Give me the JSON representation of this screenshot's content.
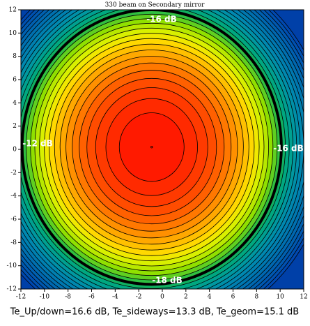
{
  "chart_data": {
    "type": "contour",
    "title": "330 beam on Secondary mirror",
    "footer": "Te_Up/down=16.6 dB, Te_sideways=13.3 dB, Te_geom=15.1 dB",
    "annotations": [
      "-16 dB",
      "-12 dB",
      "-16 dB",
      "-18 dB"
    ],
    "xlim": [
      -12,
      12
    ],
    "ylim": [
      -12,
      12
    ],
    "xticks": [
      -12,
      -10,
      -8,
      -6,
      -4,
      -2,
      0,
      2,
      4,
      6,
      8,
      10,
      12
    ],
    "yticks": [
      -12,
      -10,
      -8,
      -6,
      -4,
      -2,
      0,
      2,
      4,
      6,
      8,
      10,
      12
    ],
    "center": [
      -0.9,
      0.2
    ],
    "background": "#0040a8",
    "line_color": "#000000",
    "contours": [
      {
        "level": -1,
        "rx": 2.75,
        "ry": 2.95,
        "color": "#ff1a00"
      },
      {
        "level": -2,
        "rx": 3.89,
        "ry": 4.17,
        "color": "#ff2a00"
      },
      {
        "level": -3,
        "rx": 4.76,
        "ry": 5.11,
        "color": "#ff3a00"
      },
      {
        "level": -4,
        "rx": 5.5,
        "ry": 5.9,
        "color": "#ff4c00"
      },
      {
        "level": -5,
        "rx": 6.15,
        "ry": 6.6,
        "color": "#ff6000"
      },
      {
        "level": -6,
        "rx": 6.74,
        "ry": 7.23,
        "color": "#ff7800"
      },
      {
        "level": -7,
        "rx": 7.28,
        "ry": 7.81,
        "color": "#ff9000"
      },
      {
        "level": -8,
        "rx": 7.78,
        "ry": 8.35,
        "color": "#ffa800"
      },
      {
        "level": -9,
        "rx": 8.25,
        "ry": 8.85,
        "color": "#ffc000"
      },
      {
        "level": -10,
        "rx": 8.7,
        "ry": 9.33,
        "color": "#ffd800"
      },
      {
        "level": -11,
        "rx": 9.12,
        "ry": 9.78,
        "color": "#f0e800"
      },
      {
        "level": -12,
        "rx": 9.53,
        "ry": 10.22,
        "color": "#d8f000"
      },
      {
        "level": -13,
        "rx": 9.92,
        "ry": 10.64,
        "color": "#b8e800"
      },
      {
        "level": -14,
        "rx": 10.29,
        "ry": 11.04,
        "color": "#90e000"
      },
      {
        "level": -15,
        "rx": 10.65,
        "ry": 11.42,
        "color": "#60d020"
      },
      {
        "level": -16,
        "rx": 11.0,
        "ry": 11.8,
        "color": "#30c040"
      },
      {
        "level": -17,
        "rx": 11.34,
        "ry": 12.16,
        "color": "#10b060"
      },
      {
        "level": -18,
        "rx": 11.67,
        "ry": 12.52,
        "color": "#00a880"
      },
      {
        "level": -19,
        "rx": 11.99,
        "ry": 12.86,
        "color": "#00a090"
      },
      {
        "level": -20,
        "rx": 12.3,
        "ry": 13.2,
        "color": "#0098a0"
      },
      {
        "level": -21,
        "rx": 12.6,
        "ry": 13.52,
        "color": "#0090a8"
      },
      {
        "level": -22,
        "rx": 12.9,
        "ry": 13.84,
        "color": "#0088b0"
      },
      {
        "level": -23,
        "rx": 13.19,
        "ry": 14.15,
        "color": "#0080b0"
      },
      {
        "level": -24,
        "rx": 13.47,
        "ry": 14.45,
        "color": "#0078b0"
      },
      {
        "level": -25,
        "rx": 13.75,
        "ry": 14.75,
        "color": "#0070b0"
      },
      {
        "level": -26,
        "rx": 14.02,
        "ry": 15.04,
        "color": "#0068b0"
      },
      {
        "level": -27,
        "rx": 14.29,
        "ry": 15.33,
        "color": "#0060b0"
      },
      {
        "level": -28,
        "rx": 14.55,
        "ry": 15.61,
        "color": "#0058b0"
      },
      {
        "level": -29,
        "rx": 14.81,
        "ry": 15.89,
        "color": "#0050b0"
      },
      {
        "level": -30,
        "rx": 15.06,
        "ry": 16.16,
        "color": "#0048b0"
      }
    ]
  }
}
